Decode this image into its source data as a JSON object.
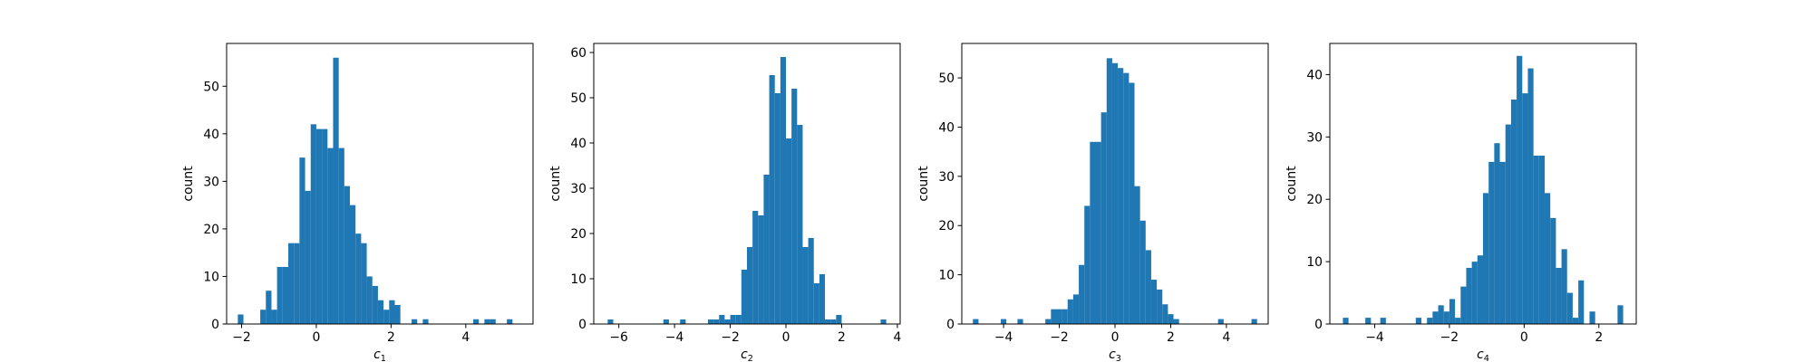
{
  "figure": {
    "bar_color": "#1f77b4",
    "axes_color": "#000000",
    "background": "#ffffff"
  },
  "chart_data": [
    {
      "type": "bar",
      "title": "",
      "xlabel": "c",
      "xlabel_subscript": "1",
      "ylabel": "count",
      "xlim": [
        -2.4,
        5.8
      ],
      "ylim": [
        0,
        59
      ],
      "xticks": [
        -2,
        0,
        2,
        4
      ],
      "xtick_labels": [
        "−2",
        "0",
        "2",
        "4"
      ],
      "yticks": [
        0,
        10,
        20,
        30,
        40,
        50
      ],
      "ytick_labels": [
        "0",
        "10",
        "20",
        "30",
        "40",
        "50"
      ],
      "bin_width": 0.15,
      "bin_starts": [
        -2.1,
        -1.8,
        -1.65,
        -1.5,
        -1.35,
        -1.2,
        -1.05,
        -0.9,
        -0.75,
        -0.6,
        -0.45,
        -0.3,
        -0.15,
        0,
        0.15,
        0.3,
        0.45,
        0.6,
        0.75,
        0.9,
        1.05,
        1.2,
        1.35,
        1.5,
        1.65,
        1.8,
        1.95,
        2.1,
        2.25,
        2.4,
        2.55,
        2.7,
        2.85,
        3.0,
        3.15,
        3.3,
        3.45,
        3.6,
        3.75,
        3.9,
        4.05,
        4.2,
        4.35,
        4.5,
        4.65,
        4.8,
        4.95,
        5.1,
        5.25
      ],
      "values": [
        2,
        0,
        0,
        3,
        7,
        3,
        12,
        12,
        17,
        17,
        35,
        28,
        42,
        41,
        41,
        37,
        56,
        37,
        29,
        25,
        19,
        17,
        10,
        8,
        5,
        3,
        5,
        4,
        0,
        0,
        1,
        0,
        1,
        0,
        0,
        0,
        0,
        0,
        0,
        0,
        0,
        1,
        0,
        1,
        1,
        0,
        0,
        1,
        0
      ]
    },
    {
      "type": "bar",
      "title": "",
      "xlabel": "c",
      "xlabel_subscript": "2",
      "ylabel": "count",
      "xlim": [
        -6.9,
        4.1
      ],
      "ylim": [
        0,
        62
      ],
      "xticks": [
        -6,
        -4,
        -2,
        0,
        2,
        4
      ],
      "xtick_labels": [
        "−6",
        "−4",
        "−2",
        "0",
        "2",
        "4"
      ],
      "yticks": [
        0,
        10,
        20,
        30,
        40,
        50,
        60
      ],
      "ytick_labels": [
        "0",
        "10",
        "20",
        "30",
        "40",
        "50",
        "60"
      ],
      "bin_width": 0.2,
      "bin_starts": [
        -6.4,
        -4.4,
        -3.8,
        -2.8,
        -2.6,
        -2.4,
        -2.2,
        -2.0,
        -1.8,
        -1.6,
        -1.4,
        -1.2,
        -1.0,
        -0.8,
        -0.6,
        -0.4,
        -0.2,
        0.0,
        0.2,
        0.4,
        0.6,
        0.8,
        1.0,
        1.2,
        1.4,
        1.6,
        1.8,
        2.0,
        3.4
      ],
      "values": [
        1,
        1,
        1,
        1,
        1,
        2,
        1,
        2,
        2,
        12,
        17,
        25,
        24,
        33,
        55,
        51,
        59,
        41,
        52,
        44,
        17,
        19,
        9,
        11,
        1,
        1,
        2,
        0,
        1
      ]
    },
    {
      "type": "bar",
      "title": "",
      "xlabel": "c",
      "xlabel_subscript": "3",
      "ylabel": "count",
      "xlim": [
        -5.5,
        5.5
      ],
      "ylim": [
        0,
        57
      ],
      "xticks": [
        -4,
        -2,
        0,
        2,
        4
      ],
      "xtick_labels": [
        "−4",
        "−2",
        "0",
        "2",
        "4"
      ],
      "yticks": [
        0,
        10,
        20,
        30,
        40,
        50
      ],
      "ytick_labels": [
        "0",
        "10",
        "20",
        "30",
        "40",
        "50"
      ],
      "bin_width": 0.2,
      "bin_starts": [
        -5.1,
        -4.1,
        -3.5,
        -2.5,
        -2.3,
        -2.1,
        -1.9,
        -1.7,
        -1.5,
        -1.3,
        -1.1,
        -0.9,
        -0.7,
        -0.5,
        -0.3,
        -0.1,
        0.1,
        0.3,
        0.5,
        0.7,
        0.9,
        1.1,
        1.3,
        1.5,
        1.7,
        1.9,
        2.1,
        3.7,
        4.9
      ],
      "values": [
        1,
        1,
        1,
        1,
        3,
        3,
        3,
        5,
        6,
        12,
        24,
        37,
        37,
        43,
        54,
        53,
        52,
        51,
        49,
        28,
        21,
        15,
        9,
        7,
        4,
        2,
        1,
        1,
        1
      ]
    },
    {
      "type": "bar",
      "title": "",
      "xlabel": "c",
      "xlabel_subscript": "4",
      "ylabel": "count",
      "xlim": [
        -5.2,
        3.0
      ],
      "ylim": [
        0,
        45
      ],
      "xticks": [
        -4,
        -2,
        0,
        2
      ],
      "xtick_labels": [
        "−4",
        "−2",
        "0",
        "2"
      ],
      "yticks": [
        0,
        10,
        20,
        30,
        40
      ],
      "ytick_labels": [
        "0",
        "10",
        "20",
        "30",
        "40"
      ],
      "bin_width": 0.15,
      "bin_starts": [
        -4.85,
        -4.25,
        -3.85,
        -2.9,
        -2.6,
        -2.45,
        -2.3,
        -2.15,
        -2.0,
        -1.85,
        -1.7,
        -1.55,
        -1.4,
        -1.25,
        -1.1,
        -0.95,
        -0.8,
        -0.65,
        -0.5,
        -0.35,
        -0.2,
        -0.05,
        0.1,
        0.25,
        0.4,
        0.55,
        0.7,
        0.85,
        1.0,
        1.15,
        1.3,
        1.45,
        1.6,
        1.75,
        2.5
      ],
      "values": [
        1,
        1,
        1,
        1,
        1,
        2,
        3,
        2,
        4,
        1,
        6,
        9,
        10,
        11,
        21,
        26,
        29,
        26,
        32,
        36,
        43,
        37,
        41,
        27,
        27,
        21,
        17,
        9,
        12,
        5,
        1,
        7,
        0,
        2,
        3
      ]
    }
  ]
}
